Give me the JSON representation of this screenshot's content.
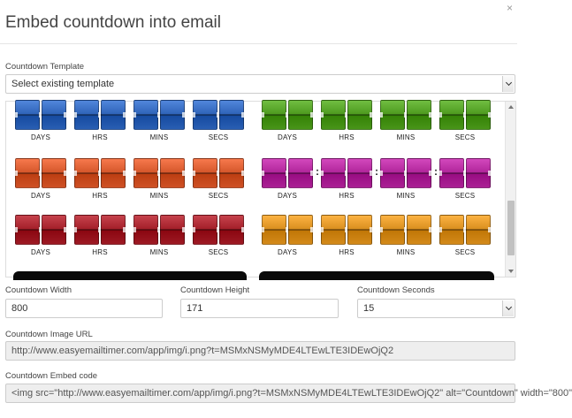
{
  "dialog": {
    "title": "Embed countdown into email",
    "close_glyph": "×"
  },
  "template": {
    "label": "Countdown Template",
    "selected": "Select existing template"
  },
  "gallery": {
    "unit_labels": [
      "DAYS",
      "HRS",
      "MINS",
      "SECS"
    ],
    "styles": [
      {
        "name": "blue",
        "color": "#2e63b8"
      },
      {
        "name": "green",
        "color": "#4d9a1e"
      },
      {
        "name": "orange",
        "color": "#d4562a"
      },
      {
        "name": "magenta",
        "color": "#b0259a"
      },
      {
        "name": "red",
        "color": "#a31f29"
      },
      {
        "name": "gold",
        "color": "#d98f1f"
      }
    ]
  },
  "width": {
    "label": "Countdown Width",
    "value": "800"
  },
  "height": {
    "label": "Countdown Height",
    "value": "171"
  },
  "seconds": {
    "label": "Countdown Seconds",
    "value": "15"
  },
  "image_url": {
    "label": "Countdown Image URL",
    "value": "http://www.easyemailtimer.com/app/img/i.png?t=MSMxNSMyMDE4LTEwLTE3IDEwOjQ2"
  },
  "embed": {
    "label": "Countdown Embed code",
    "value": "<img src=\"http://www.easyemailtimer.com/app/img/i.png?t=MSMxNSMyMDE4LTEwLTE3IDEwOjQ2\" alt=\"Countdown\" width=\"800\""
  }
}
